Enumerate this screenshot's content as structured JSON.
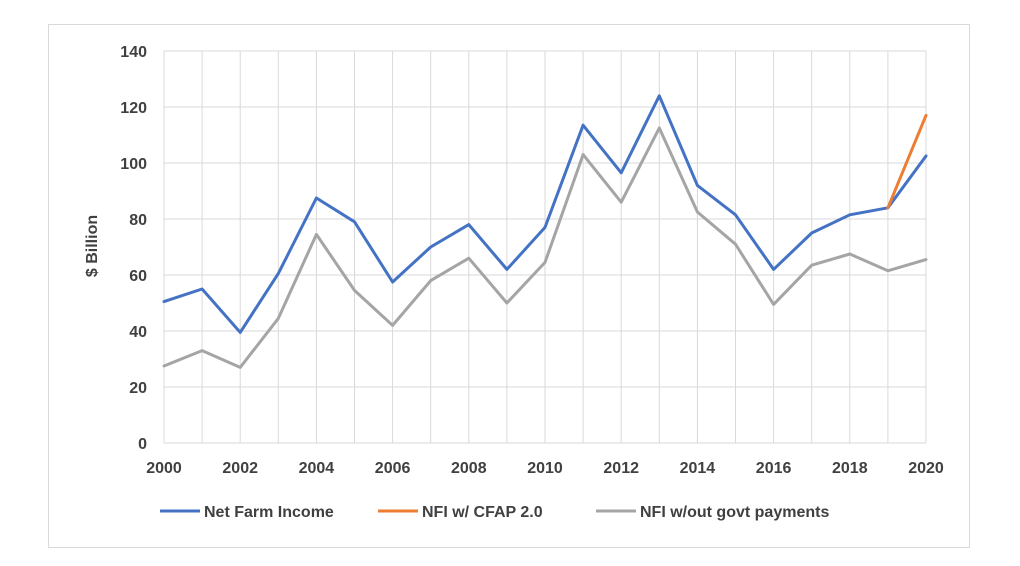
{
  "chart_data": {
    "type": "line",
    "title": "",
    "xlabel": "",
    "ylabel": "$ Billion",
    "ylim": [
      0,
      140
    ],
    "xlim": [
      2000,
      2020
    ],
    "y_ticks": [
      "0",
      "20",
      "40",
      "60",
      "80",
      "100",
      "120",
      "140"
    ],
    "x_ticks": [
      "2000",
      "2002",
      "2004",
      "2006",
      "2008",
      "2010",
      "2012",
      "2014",
      "2016",
      "2018",
      "2020"
    ],
    "grid": "vertical and horizontal",
    "legend_position": "bottom",
    "series": [
      {
        "name": "Net Farm Income",
        "color": "#4472c4",
        "x": [
          2000,
          2001,
          2002,
          2003,
          2004,
          2005,
          2006,
          2007,
          2008,
          2009,
          2010,
          2011,
          2012,
          2013,
          2014,
          2015,
          2016,
          2017,
          2018,
          2019,
          2020
        ],
        "y": [
          50.5,
          55,
          39.5,
          60.5,
          87.5,
          79,
          57.5,
          70,
          78,
          62,
          77,
          113.5,
          96.5,
          124,
          92,
          81.5,
          62,
          75,
          81.5,
          84,
          102.5
        ]
      },
      {
        "name": "NFI w/ CFAP 2.0",
        "color": "#ed7d31",
        "x": [
          2019,
          2020
        ],
        "y": [
          84,
          117
        ]
      },
      {
        "name": "NFI w/out govt payments",
        "color": "#a5a5a5",
        "x": [
          2000,
          2001,
          2002,
          2003,
          2004,
          2005,
          2006,
          2007,
          2008,
          2009,
          2010,
          2011,
          2012,
          2013,
          2014,
          2015,
          2016,
          2017,
          2018,
          2019,
          2020
        ],
        "y": [
          27.5,
          33,
          27,
          44.5,
          74.5,
          54.5,
          42,
          58,
          66,
          50,
          64.5,
          103,
          86,
          112.5,
          82.5,
          71,
          49.5,
          63.5,
          67.5,
          61.5,
          65.5
        ]
      }
    ]
  }
}
